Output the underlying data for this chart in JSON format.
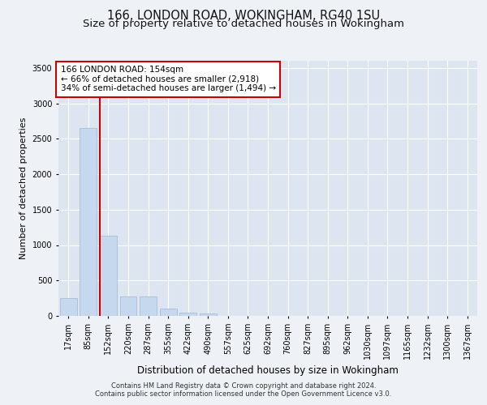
{
  "title1": "166, LONDON ROAD, WOKINGHAM, RG40 1SU",
  "title2": "Size of property relative to detached houses in Wokingham",
  "xlabel": "Distribution of detached houses by size in Wokingham",
  "ylabel": "Number of detached properties",
  "categories": [
    "17sqm",
    "85sqm",
    "152sqm",
    "220sqm",
    "287sqm",
    "355sqm",
    "422sqm",
    "490sqm",
    "557sqm",
    "625sqm",
    "692sqm",
    "760sqm",
    "827sqm",
    "895sqm",
    "962sqm",
    "1030sqm",
    "1097sqm",
    "1165sqm",
    "1232sqm",
    "1300sqm",
    "1367sqm"
  ],
  "values": [
    250,
    2650,
    1130,
    270,
    270,
    105,
    50,
    30,
    0,
    0,
    0,
    0,
    0,
    0,
    0,
    0,
    0,
    0,
    0,
    0,
    0
  ],
  "bar_color": "#c5d8ed",
  "bar_edge_color": "#a0b8d0",
  "property_line_color": "#cc0000",
  "annotation_text": "166 LONDON ROAD: 154sqm\n← 66% of detached houses are smaller (2,918)\n34% of semi-detached houses are larger (1,494) →",
  "annotation_box_color": "#ffffff",
  "annotation_box_edge": "#cc0000",
  "ylim": [
    0,
    3600
  ],
  "yticks": [
    0,
    500,
    1000,
    1500,
    2000,
    2500,
    3000,
    3500
  ],
  "footer1": "Contains HM Land Registry data © Crown copyright and database right 2024.",
  "footer2": "Contains public sector information licensed under the Open Government Licence v3.0.",
  "background_color": "#eef2f7",
  "plot_bg_color": "#dde6f0",
  "grid_color": "#ffffff",
  "title_fontsize": 10.5,
  "subtitle_fontsize": 9.5,
  "tick_fontsize": 7,
  "ylabel_fontsize": 8,
  "xlabel_fontsize": 8.5,
  "footer_fontsize": 6,
  "annotation_fontsize": 7.5
}
